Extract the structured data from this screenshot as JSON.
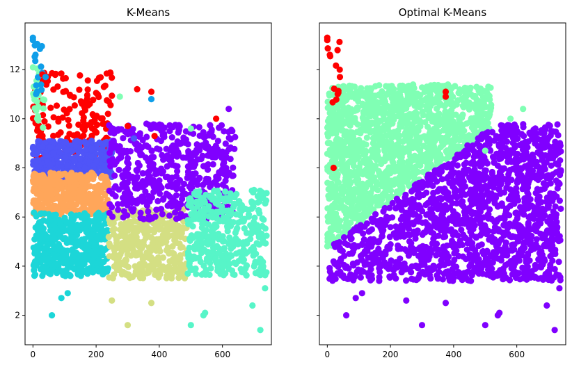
{
  "chart_data": [
    {
      "type": "scatter",
      "title": "K-Means",
      "xlabel": "",
      "ylabel": "",
      "xlim": [
        -25,
        755
      ],
      "ylim": [
        0.8,
        13.9
      ],
      "xticks": [
        0,
        200,
        400,
        600
      ],
      "xtick_labels": [
        "0",
        "200",
        "400",
        "600"
      ],
      "yticks": [
        2,
        4,
        6,
        8,
        10,
        12
      ],
      "ytick_labels": [
        "2",
        "4",
        "6",
        "8",
        "10",
        "12"
      ],
      "grid": false,
      "legend": "none",
      "clusters": [
        {
          "color": "#ff0000",
          "x_range": [
            0,
            250
          ],
          "y_range": [
            8.4,
            11.9
          ],
          "count": 170
        },
        {
          "color": "#4f55f8",
          "x_range": [
            0,
            250
          ],
          "y_range": [
            7.6,
            9.1
          ],
          "count": 380
        },
        {
          "color": "#ffa65a",
          "x_range": [
            0,
            240
          ],
          "y_range": [
            6.1,
            7.8
          ],
          "count": 380
        },
        {
          "color": "#1cd6d8",
          "x_range": [
            0,
            240
          ],
          "y_range": [
            3.6,
            6.2
          ],
          "count": 430
        },
        {
          "color": "#d4df83",
          "x_range": [
            240,
            490
          ],
          "y_range": [
            3.5,
            6.3
          ],
          "count": 400
        },
        {
          "color": "#8000ff",
          "x_range": [
            240,
            640
          ],
          "y_range": [
            5.9,
            9.8
          ],
          "count": 520
        },
        {
          "color": "#57f5c8",
          "x_range": [
            490,
            740
          ],
          "y_range": [
            3.6,
            7.1
          ],
          "count": 380
        },
        {
          "color": "#80ffb4",
          "x_range": [
            0,
            40
          ],
          "y_range": [
            9.5,
            12.2
          ],
          "count": 25
        },
        {
          "color": "#0f9ee9",
          "x_range": [
            0,
            30
          ],
          "y_range": [
            11.0,
            13.3
          ],
          "count": 14
        }
      ],
      "outliers": [
        {
          "x": 0,
          "y": 13.3,
          "color": "#0f9ee9"
        },
        {
          "x": 0,
          "y": 13.2,
          "color": "#0f9ee9"
        },
        {
          "x": 8,
          "y": 12.6,
          "color": "#0f9ee9"
        },
        {
          "x": 30,
          "y": 11.8,
          "color": "#ff0000"
        },
        {
          "x": 40,
          "y": 11.7,
          "color": "#0f9ee9"
        },
        {
          "x": 330,
          "y": 11.2,
          "color": "#ff0000"
        },
        {
          "x": 375,
          "y": 11.1,
          "color": "#ff0000"
        },
        {
          "x": 375,
          "y": 10.8,
          "color": "#0f9ee9"
        },
        {
          "x": 275,
          "y": 10.9,
          "color": "#80ffb4"
        },
        {
          "x": 240,
          "y": 10.7,
          "color": "#ff0000"
        },
        {
          "x": 180,
          "y": 10.6,
          "color": "#ff0000"
        },
        {
          "x": 580,
          "y": 10.0,
          "color": "#ff0000"
        },
        {
          "x": 620,
          "y": 10.4,
          "color": "#8000ff"
        },
        {
          "x": 300,
          "y": 9.7,
          "color": "#ff0000"
        },
        {
          "x": 385,
          "y": 9.3,
          "color": "#ff0000"
        },
        {
          "x": 500,
          "y": 9.6,
          "color": "#80ffb4"
        },
        {
          "x": 320,
          "y": 9.2,
          "color": "#4f55f8"
        },
        {
          "x": 250,
          "y": 2.6,
          "color": "#d4df83"
        },
        {
          "x": 300,
          "y": 1.6,
          "color": "#d4df83"
        },
        {
          "x": 375,
          "y": 2.5,
          "color": "#d4df83"
        },
        {
          "x": 60,
          "y": 2.0,
          "color": "#1cd6d8"
        },
        {
          "x": 90,
          "y": 2.7,
          "color": "#1cd6d8"
        },
        {
          "x": 110,
          "y": 2.9,
          "color": "#1cd6d8"
        },
        {
          "x": 500,
          "y": 1.6,
          "color": "#57f5c8"
        },
        {
          "x": 540,
          "y": 2.0,
          "color": "#57f5c8"
        },
        {
          "x": 545,
          "y": 2.1,
          "color": "#57f5c8"
        },
        {
          "x": 695,
          "y": 2.4,
          "color": "#57f5c8"
        },
        {
          "x": 720,
          "y": 1.4,
          "color": "#57f5c8"
        },
        {
          "x": 735,
          "y": 3.1,
          "color": "#57f5c8"
        }
      ]
    },
    {
      "type": "scatter",
      "title": "Optimal K-Means",
      "xlabel": "",
      "ylabel": "",
      "xlim": [
        -25,
        755
      ],
      "ylim": [
        0.8,
        13.9
      ],
      "sharey": true,
      "xticks": [
        0,
        200,
        400,
        600
      ],
      "xtick_labels": [
        "0",
        "200",
        "400",
        "600"
      ],
      "yticks": [
        2,
        4,
        6,
        8,
        10,
        12
      ],
      "ytick_labels": [
        "",
        "",
        "",
        "",
        "",
        ""
      ],
      "grid": false,
      "legend": "none",
      "clusters": [
        {
          "color": "#80ffb4",
          "region": "above line y = 4.7 + 0.0095x",
          "x_range": [
            0,
            520
          ],
          "y_range": [
            4.4,
            11.4
          ],
          "count": 1450
        },
        {
          "color": "#8000ff",
          "region": "below line y = 4.7 + 0.0095x",
          "x_range": [
            0,
            740
          ],
          "y_range": [
            3.4,
            9.8
          ],
          "count": 1500
        },
        {
          "color": "#ff0000",
          "x_range": [
            0,
            40
          ],
          "y_range": [
            10.6,
            13.3
          ],
          "count": 12
        }
      ],
      "outliers": [
        {
          "x": 0,
          "y": 13.3,
          "color": "#ff0000"
        },
        {
          "x": 0,
          "y": 13.2,
          "color": "#ff0000"
        },
        {
          "x": 8,
          "y": 12.6,
          "color": "#ff0000"
        },
        {
          "x": 40,
          "y": 11.7,
          "color": "#ff0000"
        },
        {
          "x": 375,
          "y": 11.1,
          "color": "#ff0000"
        },
        {
          "x": 375,
          "y": 10.9,
          "color": "#ff0000"
        },
        {
          "x": 330,
          "y": 11.2,
          "color": "#80ffb4"
        },
        {
          "x": 275,
          "y": 10.9,
          "color": "#80ffb4"
        },
        {
          "x": 240,
          "y": 10.7,
          "color": "#80ffb4"
        },
        {
          "x": 180,
          "y": 10.6,
          "color": "#80ffb4"
        },
        {
          "x": 580,
          "y": 10.0,
          "color": "#80ffb4"
        },
        {
          "x": 620,
          "y": 10.4,
          "color": "#80ffb4"
        },
        {
          "x": 500,
          "y": 8.7,
          "color": "#80ffb4"
        },
        {
          "x": 20,
          "y": 8.0,
          "color": "#ff0000"
        },
        {
          "x": 250,
          "y": 2.6,
          "color": "#8000ff"
        },
        {
          "x": 300,
          "y": 1.6,
          "color": "#8000ff"
        },
        {
          "x": 375,
          "y": 2.5,
          "color": "#8000ff"
        },
        {
          "x": 60,
          "y": 2.0,
          "color": "#8000ff"
        },
        {
          "x": 90,
          "y": 2.7,
          "color": "#8000ff"
        },
        {
          "x": 110,
          "y": 2.9,
          "color": "#8000ff"
        },
        {
          "x": 500,
          "y": 1.6,
          "color": "#8000ff"
        },
        {
          "x": 540,
          "y": 2.0,
          "color": "#8000ff"
        },
        {
          "x": 545,
          "y": 2.1,
          "color": "#8000ff"
        },
        {
          "x": 695,
          "y": 2.4,
          "color": "#8000ff"
        },
        {
          "x": 720,
          "y": 1.4,
          "color": "#8000ff"
        },
        {
          "x": 735,
          "y": 3.1,
          "color": "#8000ff"
        }
      ]
    }
  ]
}
